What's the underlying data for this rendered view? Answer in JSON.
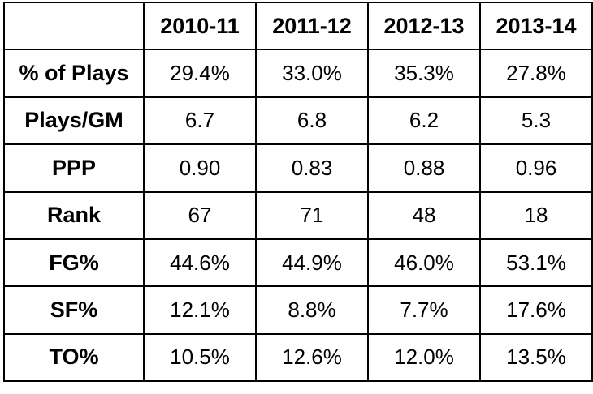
{
  "chart_data": {
    "type": "table",
    "columns": [
      "2010-11",
      "2011-12",
      "2012-13",
      "2013-14"
    ],
    "rows": [
      {
        "label": "% of Plays",
        "values": [
          "29.4%",
          "33.0%",
          "35.3%",
          "27.8%"
        ]
      },
      {
        "label": "Plays/GM",
        "values": [
          "6.7",
          "6.8",
          "6.2",
          "5.3"
        ]
      },
      {
        "label": "PPP",
        "values": [
          "0.90",
          "0.83",
          "0.88",
          "0.96"
        ]
      },
      {
        "label": "Rank",
        "values": [
          "67",
          "71",
          "48",
          "18"
        ]
      },
      {
        "label": "FG%",
        "values": [
          "44.6%",
          "44.9%",
          "46.0%",
          "53.1%"
        ]
      },
      {
        "label": "SF%",
        "values": [
          "12.1%",
          "8.8%",
          "7.7%",
          "17.6%"
        ]
      },
      {
        "label": "TO%",
        "values": [
          "10.5%",
          "12.6%",
          "12.0%",
          "13.5%"
        ]
      }
    ]
  }
}
